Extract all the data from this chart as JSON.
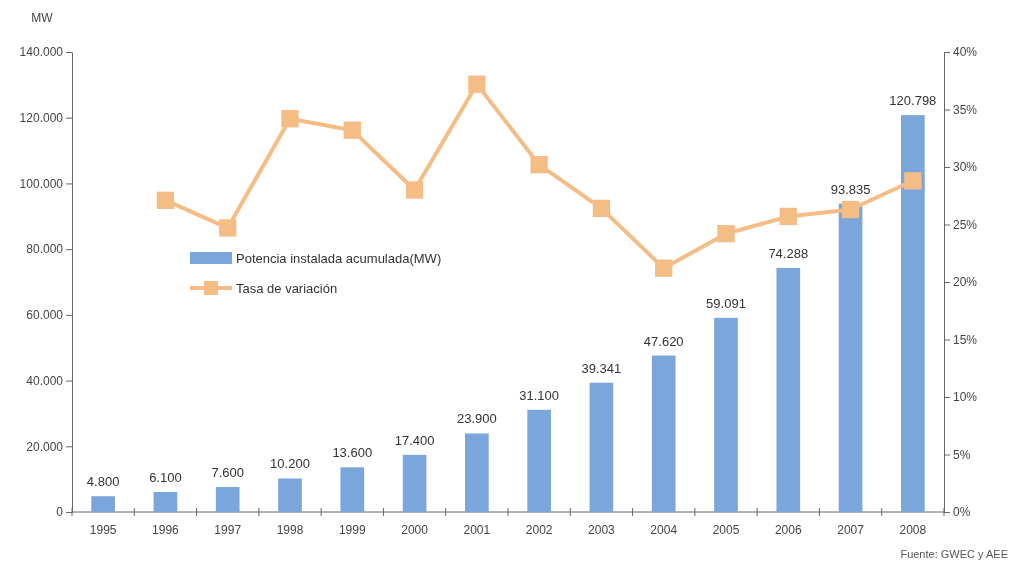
{
  "chart_data": {
    "type": "bar",
    "ylabel": "MW",
    "categories": [
      "1995",
      "1996",
      "1997",
      "1998",
      "1999",
      "2000",
      "2001",
      "2002",
      "2003",
      "2004",
      "2005",
      "2006",
      "2007",
      "2008"
    ],
    "series": [
      {
        "name": "Potencia instalada acumulada(MW)",
        "color": "#7aa6dc",
        "values": [
          4800,
          6100,
          7600,
          10200,
          13600,
          17400,
          23900,
          31100,
          39341,
          47620,
          59091,
          74288,
          93835,
          120798
        ]
      },
      {
        "name": "Tasa de variación",
        "type": "line",
        "axis": "y2",
        "color": "#f5bd86",
        "marker": "square",
        "values": [
          null,
          27.1,
          24.7,
          34.2,
          33.2,
          28.0,
          37.2,
          30.2,
          26.4,
          21.2,
          24.2,
          25.7,
          26.3,
          28.8
        ]
      }
    ],
    "ylim": [
      0,
      140000
    ],
    "yticks": [
      {
        "value": 0,
        "label": "0"
      },
      {
        "value": 20000,
        "label": "20.000"
      },
      {
        "value": 40000,
        "label": "40.000"
      },
      {
        "value": 60000,
        "label": "60.000"
      },
      {
        "value": 80000,
        "label": "80.000"
      },
      {
        "value": 100000,
        "label": "100.000"
      },
      {
        "value": 120000,
        "label": "120.000"
      },
      {
        "value": 140000,
        "label": "140.000"
      }
    ],
    "y2lim": [
      0,
      40
    ],
    "y2ticks": [
      {
        "value": 0,
        "label": "0%"
      },
      {
        "value": 5,
        "label": "5%"
      },
      {
        "value": 10,
        "label": "10%"
      },
      {
        "value": 15,
        "label": "15%"
      },
      {
        "value": 20,
        "label": "20%"
      },
      {
        "value": 25,
        "label": "25%"
      },
      {
        "value": 30,
        "label": "30%"
      },
      {
        "value": 35,
        "label": "35%"
      },
      {
        "value": 40,
        "label": "40%"
      }
    ],
    "value_labels": [
      "4.800",
      "6.100",
      "7.600",
      "10.200",
      "13.600",
      "17.400",
      "23.900",
      "31.100",
      "39.341",
      "47.620",
      "59.091",
      "74.288",
      "93.835",
      "120.798"
    ],
    "legend": "left",
    "grid": false,
    "annotations": [
      "Fuente: GWEC y AEE"
    ]
  }
}
